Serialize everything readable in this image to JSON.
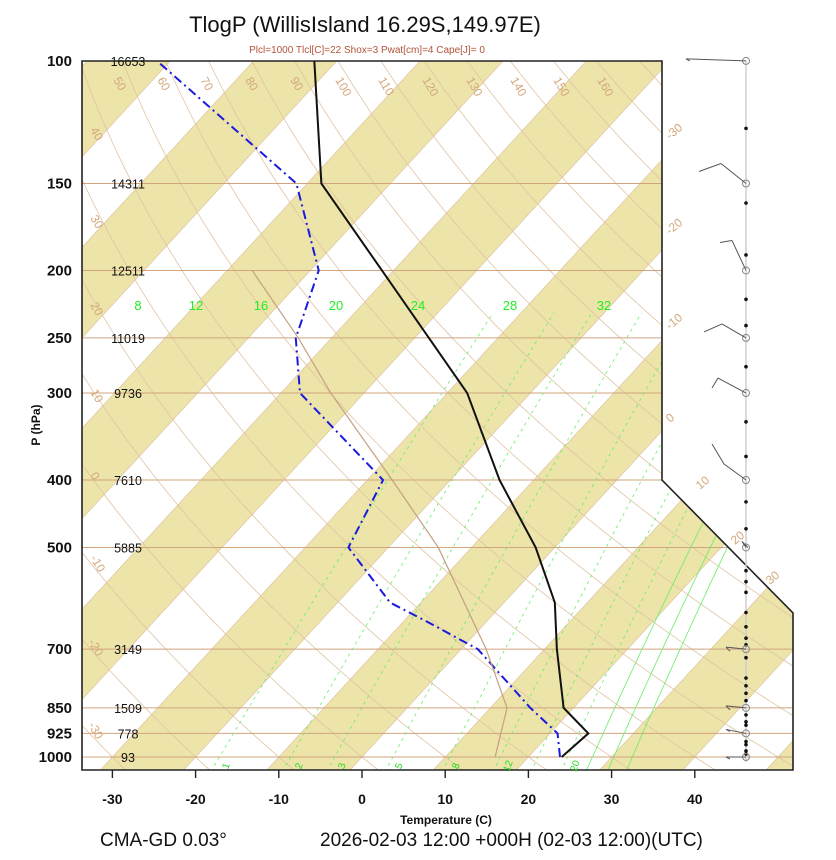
{
  "chart_data": {
    "type": "line",
    "title": "TlogP   (WillisIsland  16.29S,149.97E)",
    "subtitle": "Plcl=1000 Tlcl[C]=22 Shox=3 Pwat[cm]=4 Cape[J]= 0",
    "xlabel": "Temperature (C)",
    "ylabel": "P (hPa)",
    "xlim": [
      -34,
      51
    ],
    "ylim_hpa": [
      1050,
      100
    ],
    "y_scale": "log",
    "skew": "skew-T",
    "x_ticks": [
      -30,
      -20,
      -10,
      0,
      10,
      20,
      30,
      40
    ],
    "pressure_levels": [
      100,
      150,
      200,
      250,
      300,
      400,
      500,
      700,
      850,
      925,
      1000
    ],
    "heights_gpm": [
      "16653",
      "14311",
      "12511",
      "11019",
      "9736",
      "7610",
      "5885",
      "3149",
      "1509",
      "778",
      "93"
    ],
    "isotherm_labels": [
      "-30",
      "-20",
      "-10",
      "0",
      "10",
      "20",
      "30"
    ],
    "isotherm_values": [
      -30,
      -20,
      -10,
      0,
      10,
      20,
      30
    ],
    "dry_adiabat_labels": [
      "50",
      "60",
      "70",
      "80",
      "90",
      "100",
      "110",
      "120",
      "130",
      "140",
      "150",
      "160",
      "40",
      "30",
      "20",
      "10",
      "0",
      "-10",
      "-20",
      "-30"
    ],
    "mixing_ratio_labels_top": [
      "8",
      "12",
      "16",
      "20",
      "24",
      "28",
      "32"
    ],
    "mixing_ratio_labels_bottom": [
      "1",
      "2",
      "3",
      "5",
      "8",
      "12",
      "20"
    ],
    "series": [
      {
        "name": "Temperature",
        "style": "solid",
        "color": "#111111",
        "points": [
          {
            "p": 1000,
            "t": 24.0
          },
          {
            "p": 925,
            "t": 24.6
          },
          {
            "p": 850,
            "t": 18.8
          },
          {
            "p": 700,
            "t": 11.5
          },
          {
            "p": 600,
            "t": 6.1
          },
          {
            "p": 500,
            "t": -2.3
          },
          {
            "p": 400,
            "t": -14.1
          },
          {
            "p": 300,
            "t": -27.6
          },
          {
            "p": 250,
            "t": -38.3
          },
          {
            "p": 200,
            "t": -51.4
          },
          {
            "p": 150,
            "t": -68.3
          },
          {
            "p": 100,
            "t": -82.7
          }
        ]
      },
      {
        "name": "Dewpoint",
        "style": "dash-dot",
        "color": "#1a1adc",
        "points": [
          {
            "p": 1000,
            "t": 23.8
          },
          {
            "p": 925,
            "t": 20.9
          },
          {
            "p": 850,
            "t": 14.8
          },
          {
            "p": 700,
            "t": 2.0
          },
          {
            "p": 640,
            "t": -7.0
          },
          {
            "p": 600,
            "t": -13.7
          },
          {
            "p": 500,
            "t": -24.8
          },
          {
            "p": 400,
            "t": -28.1
          },
          {
            "p": 300,
            "t": -47.7
          },
          {
            "p": 250,
            "t": -54.3
          },
          {
            "p": 200,
            "t": -59.0
          },
          {
            "p": 150,
            "t": -71.3
          },
          {
            "p": 100,
            "t": -101.6
          }
        ]
      },
      {
        "name": "Parcel",
        "style": "solid-thin",
        "color": "#c4a080",
        "points": [
          {
            "p": 1000,
            "t": 16.0
          },
          {
            "p": 850,
            "t": 12.0
          },
          {
            "p": 700,
            "t": 3.0
          },
          {
            "p": 500,
            "t": -14.0
          },
          {
            "p": 400,
            "t": -27.0
          },
          {
            "p": 300,
            "t": -44.0
          },
          {
            "p": 250,
            "t": -54.0
          },
          {
            "p": 200,
            "t": -67.0
          }
        ]
      }
    ],
    "wind_profile": {
      "levels_hpa": [
        100,
        150,
        200,
        250,
        300,
        400,
        500,
        700,
        850,
        925,
        1000
      ],
      "barbs": [
        "100",
        "150",
        "200",
        "250",
        "300",
        "400",
        "500",
        "700",
        "850",
        "925",
        "1000"
      ]
    }
  },
  "footer": {
    "model": "CMA-GD 0.03°",
    "time": "2026-02-03 12:00 +000H (02-03 12:00)(UTC)"
  },
  "colors": {
    "band": "#ece4a8",
    "isotherm_line": "#e0c4a4",
    "pressure_line": "#d2a47e",
    "mixing_ratio": "#66ee66",
    "temperature": "#111111",
    "dewpoint": "#1a1adc"
  }
}
